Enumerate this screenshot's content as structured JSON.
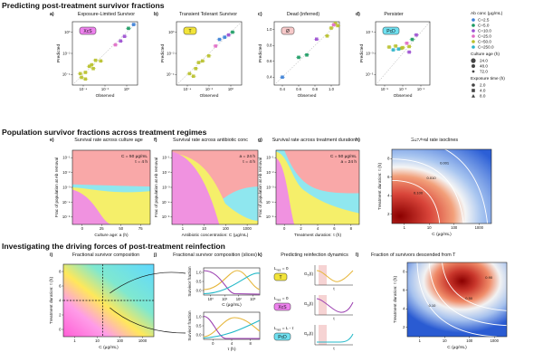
{
  "sections": {
    "s1": "Predicting post-treatment survivor fractions",
    "s2": "Population survivor fractions across treatment regimes",
    "s3": "Investigating the driving forces of post-treatment reinfection"
  },
  "panel_letters": {
    "a": "a)",
    "b": "b)",
    "c": "c)",
    "d": "d)",
    "e": "e)",
    "f": "f)",
    "g": "g)",
    "h": "h)",
    "i": "i)",
    "j": "j)",
    "k": "k)",
    "l": "l)"
  },
  "legend": {
    "ab_title": "Ab conc (μg/mL)",
    "ab": [
      {
        "label": "C=2.5",
        "color": "#3a7fd6"
      },
      {
        "label": "C=5.0",
        "color": "#1a9a62"
      },
      {
        "label": "C=10.0",
        "color": "#9b4fd0"
      },
      {
        "label": "C=25.0",
        "color": "#e06cc6"
      },
      {
        "label": "C=50.0",
        "color": "#b8c02a"
      },
      {
        "label": "C=250.0",
        "color": "#2bb3c9"
      }
    ],
    "age_title": "Culture age (h)",
    "age": [
      "24.0",
      "48.0",
      "72.0"
    ],
    "exp_title": "Exposure time (h)",
    "exp": [
      "2.0",
      "4.0",
      "8.0"
    ]
  },
  "chart_data": [
    {
      "id": "a",
      "type": "scatter",
      "title": "Exposure-Limited Survivor",
      "badge": "XcS",
      "badge_color": "#ee82ee",
      "xlabel": "Observed",
      "ylabel": "Predicted",
      "xscale": "log",
      "xlim": [
        1e-05,
        1
      ],
      "ylim": [
        1e-05,
        1
      ],
      "xticks": [
        "10⁻⁴",
        "10⁻²",
        "10⁰"
      ],
      "yticks": [
        "10⁰",
        "10⁻²",
        "10⁻⁴"
      ],
      "points": [
        {
          "x": 0.0001,
          "y": 0.0001,
          "c": 4
        },
        {
          "x": 0.0002,
          "y": 0.0003,
          "c": 4
        },
        {
          "x": 5e-05,
          "y": 4e-05,
          "c": 4
        },
        {
          "x": 0.0003,
          "y": 0.0004,
          "c": 4
        },
        {
          "x": 0.0006,
          "y": 0.0009,
          "c": 4
        },
        {
          "x": 0.0015,
          "y": 0.0008,
          "c": 4
        },
        {
          "x": 0.02,
          "y": 0.015,
          "c": 3
        },
        {
          "x": 0.05,
          "y": 0.03,
          "c": 2
        },
        {
          "x": 0.1,
          "y": 0.07,
          "c": 2
        },
        {
          "x": 0.2,
          "y": 0.3,
          "c": 1
        },
        {
          "x": 0.5,
          "y": 0.6,
          "c": 0
        },
        {
          "x": 0.0001,
          "y": 3e-05,
          "c": 4
        },
        {
          "x": 4e-05,
          "y": 8e-05,
          "c": 4
        },
        {
          "x": 0.0004,
          "y": 0.0002,
          "c": 4
        }
      ]
    },
    {
      "id": "b",
      "type": "scatter",
      "title": "Transient Tolerant Survivor",
      "badge": "T",
      "badge_color": "#f2e43a",
      "xlabel": "Observed",
      "ylabel": "Predicted",
      "xscale": "log",
      "xlim": [
        1e-05,
        1
      ],
      "ylim": [
        1e-05,
        1
      ],
      "xticks": [
        "10⁻⁴",
        "10⁻²",
        "10⁰"
      ],
      "yticks": [
        "10⁰",
        "10⁻²",
        "10⁻⁴"
      ],
      "points": [
        {
          "x": 0.0001,
          "y": 8e-05,
          "c": 4
        },
        {
          "x": 0.0003,
          "y": 0.0002,
          "c": 4
        },
        {
          "x": 0.0002,
          "y": 5e-05,
          "c": 4
        },
        {
          "x": 0.001,
          "y": 0.0008,
          "c": 4
        },
        {
          "x": 0.003,
          "y": 0.002,
          "c": 4
        },
        {
          "x": 0.01,
          "y": 0.012,
          "c": 3
        },
        {
          "x": 0.02,
          "y": 0.04,
          "c": 0
        },
        {
          "x": 0.05,
          "y": 0.06,
          "c": 0
        },
        {
          "x": 0.1,
          "y": 0.09,
          "c": 2
        },
        {
          "x": 0.2,
          "y": 0.15,
          "c": 1
        },
        {
          "x": 0.0005,
          "y": 0.0006,
          "c": 4
        }
      ]
    },
    {
      "id": "c",
      "type": "scatter",
      "title": "Dead (inferred)",
      "badge": "Ø",
      "badge_color": "#f7c9c9",
      "xlabel": "Observed",
      "ylabel": "Predicted",
      "xscale": "linear",
      "xlim": [
        0.2,
        1.0
      ],
      "ylim": [
        0.2,
        1.0
      ],
      "xticks": [
        "0.4",
        "0.6",
        "0.8",
        "1.0"
      ],
      "yticks": [
        "1.0",
        "0.8",
        "0.6",
        "0.4"
      ],
      "points": [
        {
          "x": 0.3,
          "y": 0.3,
          "c": 0
        },
        {
          "x": 0.5,
          "y": 0.55,
          "c": 1
        },
        {
          "x": 0.6,
          "y": 0.58,
          "c": 1
        },
        {
          "x": 0.72,
          "y": 0.78,
          "c": 2
        },
        {
          "x": 0.85,
          "y": 0.82,
          "c": 4
        },
        {
          "x": 0.9,
          "y": 0.92,
          "c": 4
        },
        {
          "x": 0.95,
          "y": 0.98,
          "c": 4
        },
        {
          "x": 0.98,
          "y": 0.95,
          "c": 4
        },
        {
          "x": 0.93,
          "y": 0.96,
          "c": 3
        }
      ]
    },
    {
      "id": "d",
      "type": "scatter",
      "title": "Persister",
      "badge": "PcD",
      "badge_color": "#6fe0f0",
      "xlabel": "Observed",
      "ylabel": "Predicted",
      "xscale": "log",
      "xlim": [
        1e-05,
        0.1
      ],
      "ylim": [
        1e-06,
        0.1
      ],
      "xticks": [
        "10⁻⁵",
        "10⁻³",
        "10⁻¹"
      ],
      "yticks": [
        "10⁻¹",
        "10⁻³",
        "10⁻⁵"
      ],
      "points": [
        {
          "x": 0.0001,
          "y": 0.001,
          "c": 4
        },
        {
          "x": 0.0003,
          "y": 0.0012,
          "c": 4
        },
        {
          "x": 0.001,
          "y": 0.0009,
          "c": 4
        },
        {
          "x": 0.003,
          "y": 0.0011,
          "c": 4
        },
        {
          "x": 0.0008,
          "y": 0.0008,
          "c": 4
        },
        {
          "x": 0.002,
          "y": 0.002,
          "c": 3
        },
        {
          "x": 0.01,
          "y": 0.009,
          "c": 2
        },
        {
          "x": 0.005,
          "y": 0.004,
          "c": 1
        },
        {
          "x": 0.0005,
          "y": 0.0007,
          "c": 5
        },
        {
          "x": 0.0002,
          "y": 0.0006,
          "c": 5
        },
        {
          "x": 0.003,
          "y": 0.0004,
          "c": 2
        }
      ]
    },
    {
      "id": "e",
      "type": "area",
      "title": "Survival rate across culture age",
      "annotation": [
        "C = 50 μg/mL",
        "τ = 4 h"
      ],
      "xlabel": "Culture age: a (h)",
      "ylabel": "Frac of population at Ab removal",
      "xlim": [
        0,
        100
      ],
      "ylim": [
        1e-05,
        1
      ],
      "xticks": [
        "0",
        "25",
        "50",
        "75"
      ],
      "yticks": [
        "10⁻¹",
        "10⁻²",
        "10⁻³",
        "10⁻⁴",
        "10⁻⁵"
      ]
    },
    {
      "id": "f",
      "type": "area",
      "title": "Survival rate across antibiotic conc",
      "annotation": [
        "a = 24 h",
        "τ = 4 h"
      ],
      "xlabel": "Antibiotic concentration: C (μg/mL)",
      "ylabel": "Frac of population at Ab removal",
      "xlim": [
        1,
        1000
      ],
      "ylim": [
        1e-05,
        1
      ],
      "xticks": [
        "1",
        "10",
        "100",
        "1000"
      ],
      "yticks": [
        "10⁻¹",
        "10⁻²",
        "10⁻³",
        "10⁻⁴",
        "10⁻⁵"
      ]
    },
    {
      "id": "g",
      "type": "area",
      "title": "Survival rate across treatment duration",
      "annotation": [
        "C = 50 μg/mL",
        "a = 24 h"
      ],
      "xlabel": "Treatment duration: τ (h)",
      "ylabel": "Frac of population at Ab removal",
      "xlim": [
        0,
        8
      ],
      "ylim": [
        1e-05,
        1
      ],
      "xticks": [
        "0",
        "2",
        "4",
        "6",
        "8"
      ],
      "yticks": [
        "10⁻¹",
        "10⁻²",
        "10⁻³",
        "10⁻⁴",
        "10⁻⁵"
      ]
    },
    {
      "id": "h",
      "type": "heatmap",
      "title": "Survival rate isoclines",
      "xlabel": "C (μg/mL)",
      "ylabel": "Treatment duration: τ (h)",
      "xticks": [
        "1",
        "10",
        "100",
        "1000"
      ],
      "yticks": [
        "8",
        "6",
        "4",
        "2"
      ],
      "contours": [
        "0.100",
        "0.010",
        "0.001"
      ]
    },
    {
      "id": "i",
      "type": "heatmap",
      "title": "Fractional survivor composition",
      "xlabel": "C (μg/mL)",
      "ylabel": "Treatment duration: τ (h)",
      "xticks": [
        "1",
        "10",
        "100",
        "1000"
      ],
      "yticks": [
        "8",
        "6",
        "4",
        "2",
        "0"
      ],
      "guides": {
        "tau": 4,
        "C": 20
      }
    },
    {
      "id": "j",
      "type": "line",
      "title": "Fractional survivor composition (slices)",
      "top": {
        "xlabel": "C (μg/mL)",
        "ylabel": "Survivor fraction",
        "xticks": [
          "10⁰",
          "10¹",
          "10²",
          "10³"
        ],
        "yticks": [
          "1.0",
          "0.5",
          "0.0"
        ]
      },
      "bottom": {
        "xlabel": "τ (h)",
        "ylabel": "Survivor fraction",
        "xticks": [
          "0",
          "4",
          "8"
        ],
        "yticks": [
          "1.0",
          "0.5",
          "0.0"
        ]
      },
      "series": [
        {
          "name": "T",
          "color": "#e6b63a"
        },
        {
          "name": "XcS",
          "color": "#9b3fb0"
        },
        {
          "name": "PcD",
          "color": "#22b8c8"
        }
      ]
    },
    {
      "id": "k",
      "type": "line",
      "title": "Predicting reinfection dynamics",
      "rows": [
        {
          "lres": "L",
          "lres_sub": "res",
          "lres_rhs": "= 0",
          "badge": "T",
          "badge_color": "#f2e43a",
          "g": "G",
          "g_sub": "T",
          "g_arg": "(t)",
          "color": "#e6b63a",
          "x": "t"
        },
        {
          "lres": "L",
          "lres_sub": "res",
          "lres_rhs": "= 0",
          "badge": "XcS",
          "badge_color": "#ee82ee",
          "g": "G",
          "g_sub": "S",
          "g_arg": "(t)",
          "color": "#9b3fb0",
          "x": "t"
        },
        {
          "lres": "L",
          "lres_sub": "res",
          "lres_rhs": "= L - τ",
          "badge": "PcD",
          "badge_color": "#6fe0f0",
          "g": "G",
          "g_sub": "P",
          "g_arg": "(t)",
          "color": "#22b8c8",
          "x": "t"
        }
      ]
    },
    {
      "id": "l",
      "type": "heatmap",
      "title": "Fraction of survivors descended from T",
      "xlabel": "C (μg/mL)",
      "ylabel": "Treatment duration: τ (h)",
      "xticks": [
        "1",
        "10",
        "100",
        "1000"
      ],
      "yticks": [
        "8",
        "6",
        "4",
        "2"
      ],
      "contours": [
        "0.10",
        "0.50",
        "0.90"
      ]
    }
  ]
}
